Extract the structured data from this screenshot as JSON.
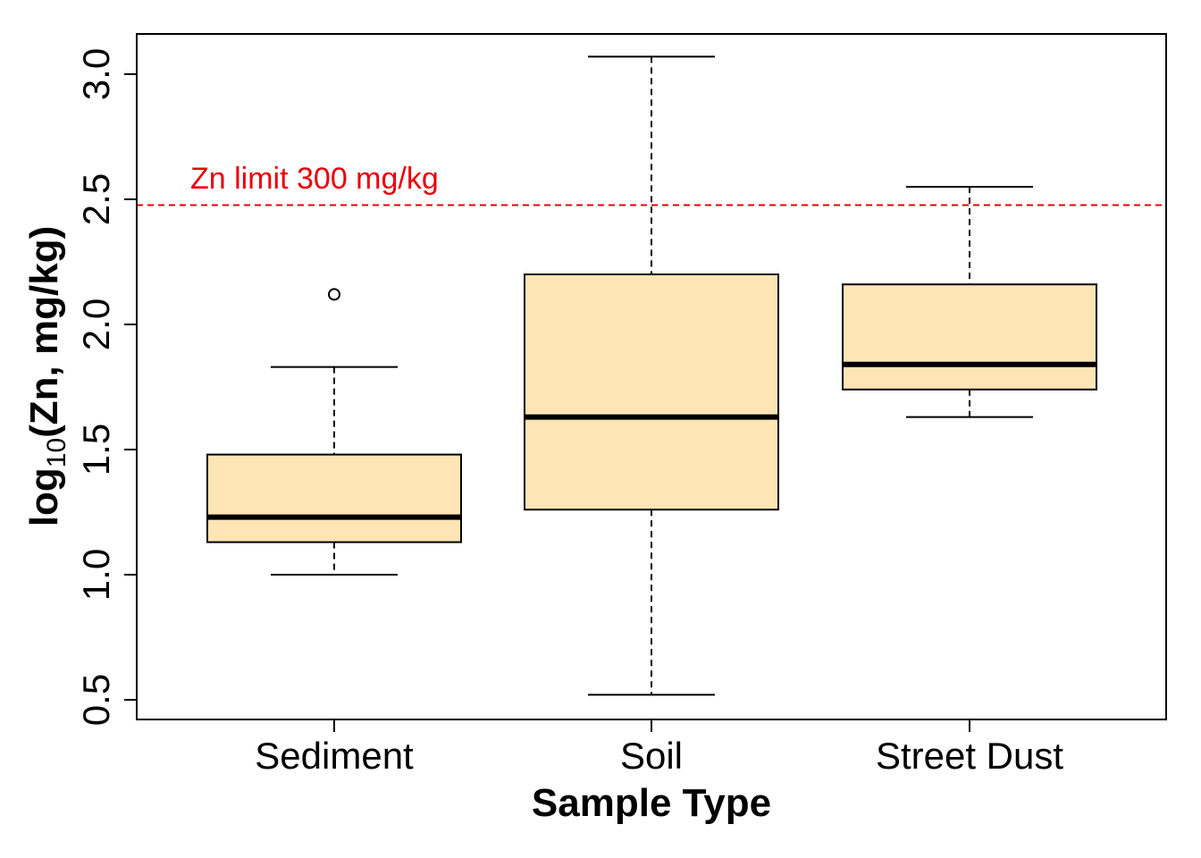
{
  "chart_data": {
    "type": "boxplot",
    "title": "",
    "xlabel": "Sample Type",
    "ylabel": {
      "prefix": "log",
      "subscript": "10",
      "suffix": "(Zn, mg/kg)"
    },
    "ylim": [
      0.42,
      3.17
    ],
    "yticks": [
      0.5,
      1.0,
      1.5,
      2.0,
      2.5,
      3.0
    ],
    "ytick_labels": [
      "0.5",
      "1.0",
      "1.5",
      "2.0",
      "2.5",
      "3.0"
    ],
    "categories": [
      "Sediment",
      "Soil",
      "Street Dust"
    ],
    "boxes": [
      {
        "category": "Sediment",
        "whisker_low": 1.0,
        "q1": 1.13,
        "median": 1.23,
        "q3": 1.48,
        "whisker_high": 1.83,
        "outliers": [
          2.12
        ]
      },
      {
        "category": "Soil",
        "whisker_low": 0.52,
        "q1": 1.26,
        "median": 1.63,
        "q3": 2.2,
        "whisker_high": 3.07,
        "outliers": []
      },
      {
        "category": "Street Dust",
        "whisker_low": 1.63,
        "q1": 1.74,
        "median": 1.84,
        "q3": 2.16,
        "whisker_high": 2.55,
        "outliers": []
      }
    ],
    "reference_line": {
      "value": 2.477,
      "label": "Zn limit 300 mg/kg",
      "color": "#e8000b"
    },
    "box_fill": "#ffe4b5",
    "grid": false,
    "legend": "none"
  }
}
